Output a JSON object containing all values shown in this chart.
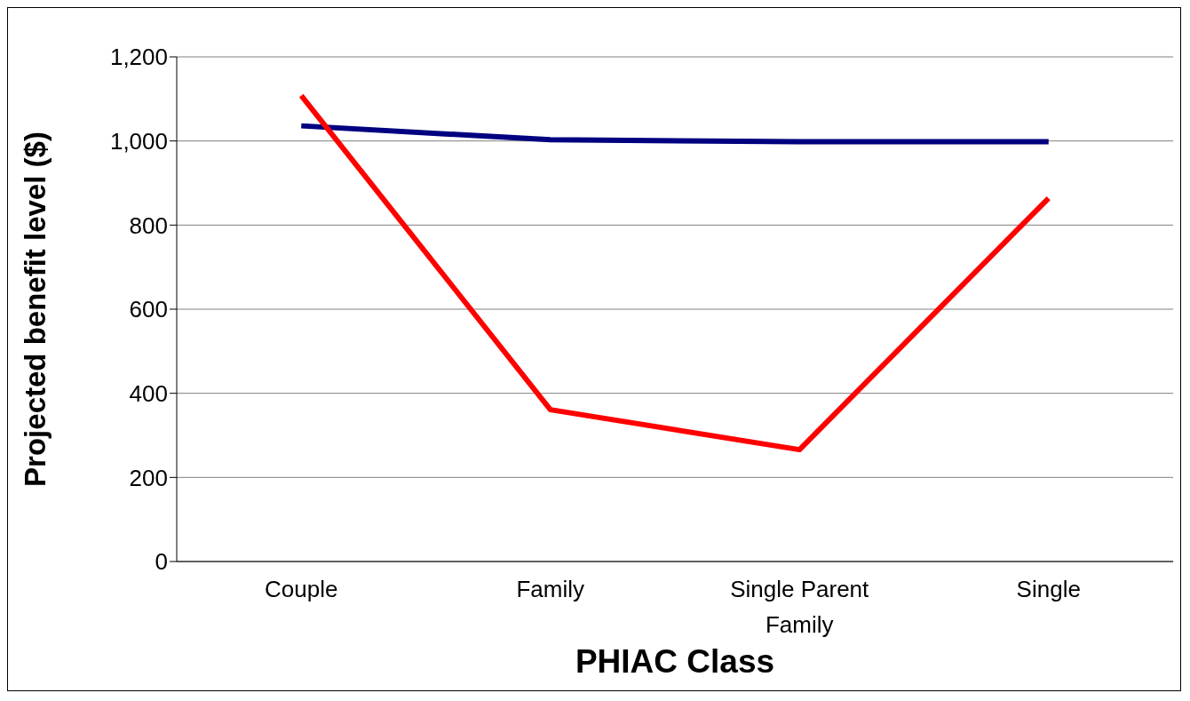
{
  "chart_data": {
    "type": "line",
    "xlabel": "PHIAC Class",
    "ylabel": "Projected benefit level ($)",
    "categories": [
      "Couple",
      "Family",
      "Single Parent Family",
      "Single"
    ],
    "series": [
      {
        "color": "#000080",
        "values": [
          1036,
          1003,
          998,
          998
        ]
      },
      {
        "color": "#ff0000",
        "values": [
          1108,
          361,
          266,
          864
        ]
      }
    ],
    "ylim": [
      0,
      1200
    ],
    "yticks": [
      {
        "value": 0,
        "label": "0"
      },
      {
        "value": 200,
        "label": "200"
      },
      {
        "value": 400,
        "label": "400"
      },
      {
        "value": 600,
        "label": "600"
      },
      {
        "value": 800,
        "label": "800"
      },
      {
        "value": 1000,
        "label": "1,000"
      },
      {
        "value": 1200,
        "label": "1,200"
      }
    ],
    "grid": "y",
    "legend": false,
    "marker": "none",
    "line_style": "solid"
  }
}
